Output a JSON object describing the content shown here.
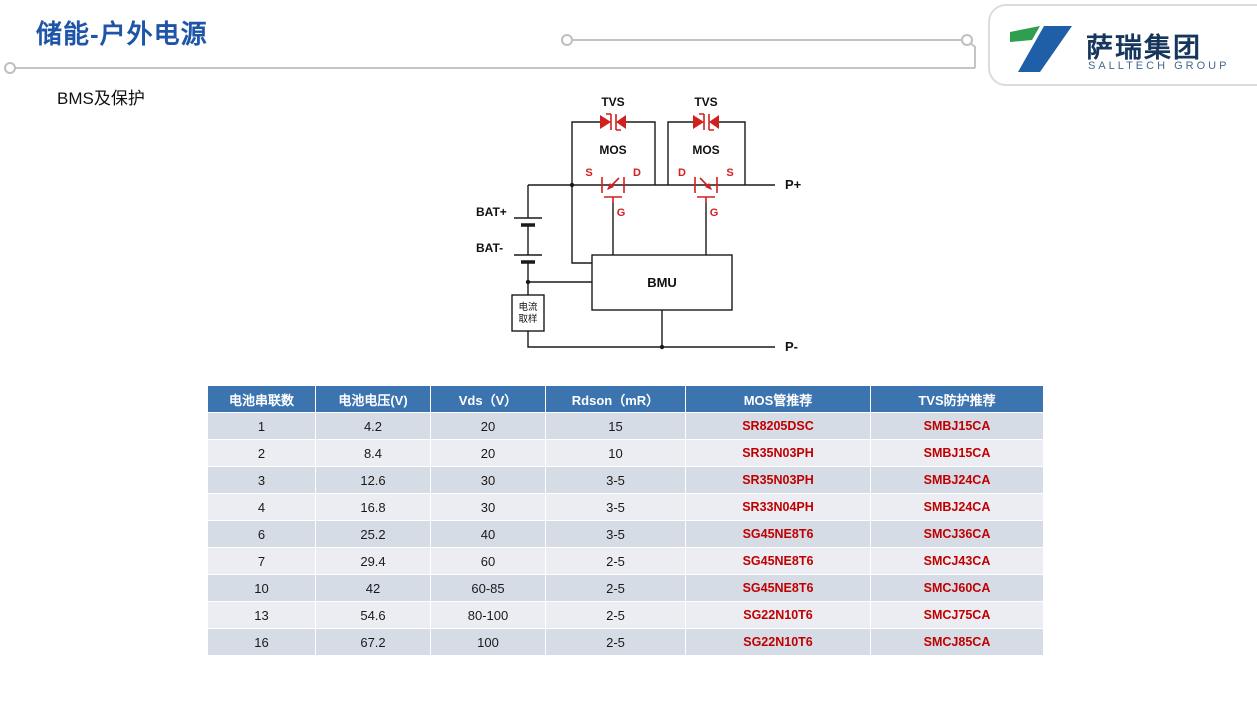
{
  "header": {
    "title": "储能-户外电源",
    "subtitle": "BMS及保护"
  },
  "logo": {
    "company": "萨瑞集团",
    "company_en": "SALLTECH GROUP"
  },
  "diagram": {
    "tvs_left": "TVS",
    "tvs_right": "TVS",
    "mos_left": "MOS",
    "mos_right": "MOS",
    "mos_left_s": "S",
    "mos_left_d": "D",
    "mos_left_g": "G",
    "mos_right_d": "D",
    "mos_right_s": "S",
    "mos_right_g": "G",
    "bat_plus": "BAT+",
    "bat_minus": "BAT-",
    "bmu": "BMU",
    "sample_line1": "电流",
    "sample_line2": "取样",
    "p_plus": "P+",
    "p_minus": "P-"
  },
  "table": {
    "headers": [
      "电池串联数",
      "电池电压(V)",
      "Vds（V）",
      "Rdson（mR）",
      "MOS管推荐",
      "TVS防护推荐"
    ],
    "red_columns": [
      4,
      5
    ],
    "rows": [
      [
        "1",
        "4.2",
        "20",
        "15",
        "SR8205DSC",
        "SMBJ15CA"
      ],
      [
        "2",
        "8.4",
        "20",
        "10",
        "SR35N03PH",
        "SMBJ15CA"
      ],
      [
        "3",
        "12.6",
        "30",
        "3-5",
        "SR35N03PH",
        "SMBJ24CA"
      ],
      [
        "4",
        "16.8",
        "30",
        "3-5",
        "SR33N04PH",
        "SMBJ24CA"
      ],
      [
        "6",
        "25.2",
        "40",
        "3-5",
        "SG45NE8T6",
        "SMCJ36CA"
      ],
      [
        "7",
        "29.4",
        "60",
        "2-5",
        "SG45NE8T6",
        "SMCJ43CA"
      ],
      [
        "10",
        "42",
        "60-85",
        "2-5",
        "SG45NE8T6",
        "SMCJ60CA"
      ],
      [
        "13",
        "54.6",
        "80-100",
        "2-5",
        "SG22N10T6",
        "SMCJ75CA"
      ],
      [
        "16",
        "67.2",
        "100",
        "2-5",
        "SG22N10T6",
        "SMCJ85CA"
      ]
    ]
  },
  "colors": {
    "title_blue": "#1F55A8",
    "table_header_bg": "#3C74B0",
    "row_dark": "#D5DCE5",
    "row_light": "#EBEDF2",
    "part_red": "#C00000",
    "diagram_red": "#D02020",
    "line_black": "#1A1A1A",
    "logo_green": "#2E9E4F",
    "logo_blue": "#1F5FA8"
  }
}
